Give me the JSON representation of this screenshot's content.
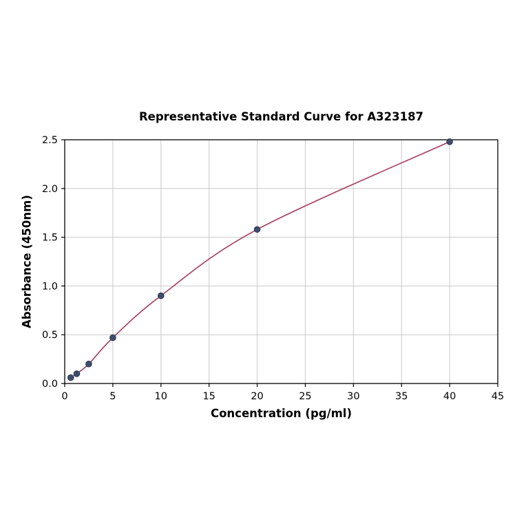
{
  "page": {
    "background": "#ffffff"
  },
  "chart_data": {
    "type": "scatter",
    "title": "Representative Standard Curve for A323187",
    "xlabel": "Concentration (pg/ml)",
    "ylabel": "Absorbance (450nm)",
    "xlim": [
      0,
      45
    ],
    "ylim": [
      0.0,
      2.5
    ],
    "x_ticks": [
      "0",
      "5",
      "10",
      "15",
      "20",
      "25",
      "30",
      "35",
      "40",
      "45"
    ],
    "y_ticks": [
      "0.0",
      "0.5",
      "1.0",
      "1.5",
      "2.0",
      "2.5"
    ],
    "grid": true,
    "legend_position": "none",
    "grid_color": "#c9c9c9",
    "axis_color": "#000000",
    "series": [
      {
        "name": "standards",
        "x": [
          0.625,
          1.25,
          2.5,
          5,
          10,
          20,
          40
        ],
        "y": [
          0.06,
          0.1,
          0.2,
          0.47,
          0.9,
          1.58,
          2.48
        ],
        "marker_color": "#3e4d6d",
        "marker_edge_color": "#2e3b55",
        "line_color": "#ab4462",
        "fit": "smooth"
      }
    ]
  }
}
